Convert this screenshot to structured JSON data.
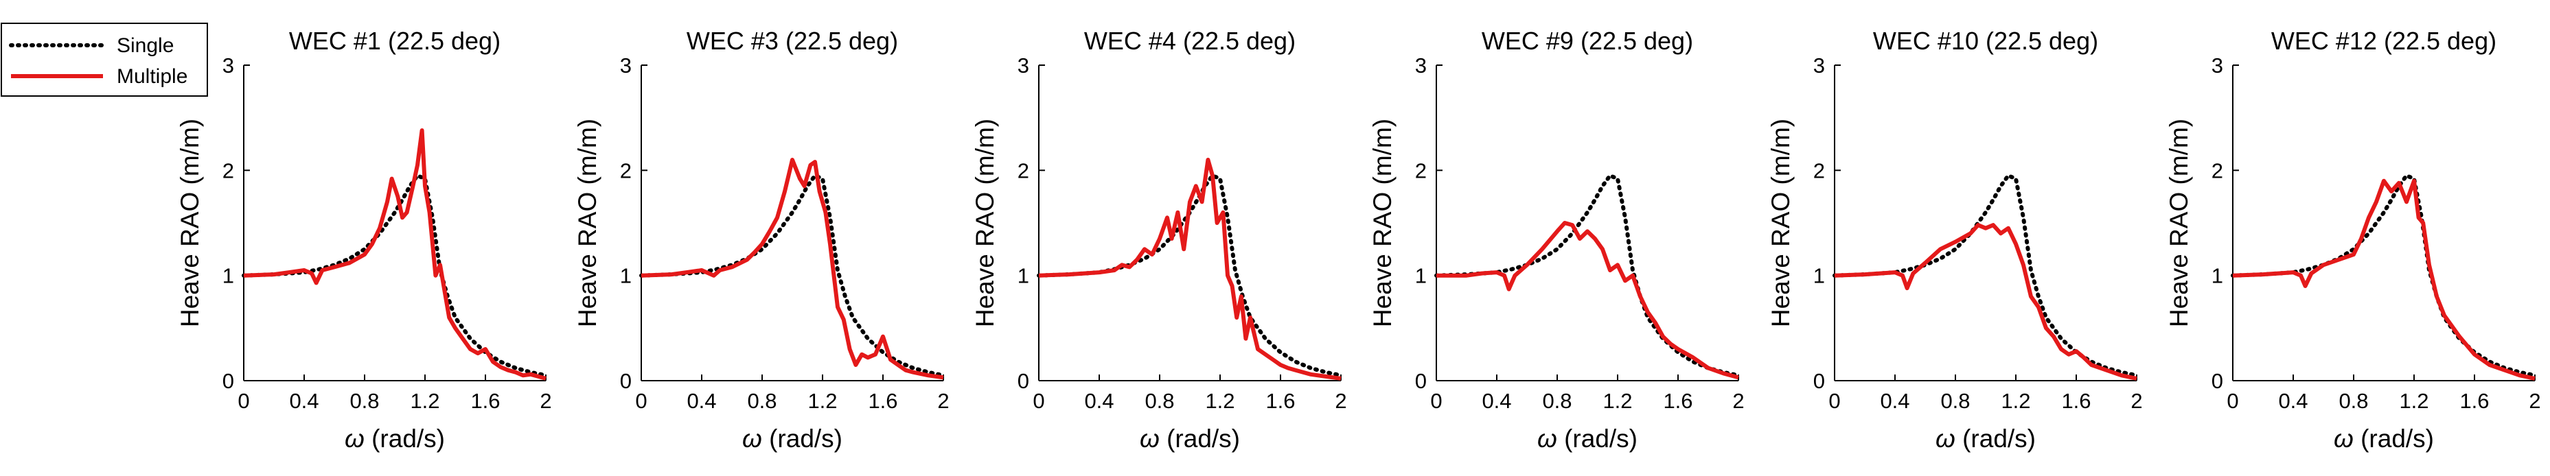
{
  "legend": {
    "entries": [
      {
        "label": "Single",
        "color": "#000000",
        "style": "dotted"
      },
      {
        "label": "Multiple",
        "color": "#e41a1a",
        "style": "solid"
      }
    ],
    "placement": "top-left"
  },
  "chart_data": [
    {
      "type": "line",
      "title": "WEC #1 (22.5 deg)",
      "xlabel": "ω (rad/s)",
      "ylabel": "Heave RAO (m/m)",
      "xlim": [
        0,
        2
      ],
      "ylim": [
        0,
        3
      ],
      "xticks": [
        "0",
        "0.4",
        "0.8",
        "1.2",
        "1.6",
        "2"
      ],
      "yticks": [
        "0",
        "1",
        "2",
        "3"
      ],
      "grid": false,
      "series": [
        {
          "name": "Single",
          "x": [
            0,
            0.2,
            0.4,
            0.5,
            0.6,
            0.7,
            0.8,
            0.9,
            1.0,
            1.05,
            1.1,
            1.15,
            1.2,
            1.25,
            1.3,
            1.35,
            1.4,
            1.5,
            1.6,
            1.7,
            1.8,
            1.9,
            2.0
          ],
          "y": [
            1.0,
            1.01,
            1.03,
            1.06,
            1.1,
            1.16,
            1.25,
            1.4,
            1.6,
            1.72,
            1.85,
            1.95,
            1.92,
            1.55,
            1.05,
            0.8,
            0.6,
            0.4,
            0.27,
            0.18,
            0.12,
            0.08,
            0.05
          ]
        },
        {
          "name": "Multiple",
          "x": [
            0,
            0.2,
            0.3,
            0.4,
            0.45,
            0.48,
            0.52,
            0.6,
            0.7,
            0.8,
            0.85,
            0.9,
            0.95,
            0.98,
            1.02,
            1.05,
            1.08,
            1.12,
            1.15,
            1.18,
            1.2,
            1.23,
            1.27,
            1.3,
            1.33,
            1.36,
            1.4,
            1.45,
            1.5,
            1.55,
            1.6,
            1.65,
            1.7,
            1.75,
            1.8,
            1.85,
            1.9,
            1.95,
            2.0
          ],
          "y": [
            1.0,
            1.01,
            1.03,
            1.05,
            1.02,
            0.93,
            1.05,
            1.08,
            1.12,
            1.2,
            1.3,
            1.45,
            1.7,
            1.92,
            1.75,
            1.55,
            1.6,
            1.85,
            2.05,
            2.38,
            1.85,
            1.6,
            1.0,
            1.1,
            0.85,
            0.6,
            0.5,
            0.4,
            0.3,
            0.26,
            0.3,
            0.18,
            0.13,
            0.1,
            0.08,
            0.05,
            0.06,
            0.04,
            0.02
          ]
        }
      ]
    },
    {
      "type": "line",
      "title": "WEC #3 (22.5 deg)",
      "xlabel": "ω (rad/s)",
      "ylabel": "Heave RAO (m/m)",
      "xlim": [
        0,
        2
      ],
      "ylim": [
        0,
        3
      ],
      "xticks": [
        "0",
        "0.4",
        "0.8",
        "1.2",
        "1.6",
        "2"
      ],
      "yticks": [
        "0",
        "1",
        "2",
        "3"
      ],
      "grid": false,
      "series": [
        {
          "name": "Single",
          "x": [
            0,
            0.2,
            0.4,
            0.5,
            0.6,
            0.7,
            0.8,
            0.9,
            1.0,
            1.05,
            1.1,
            1.15,
            1.2,
            1.25,
            1.3,
            1.35,
            1.4,
            1.5,
            1.6,
            1.7,
            1.8,
            1.9,
            2.0
          ],
          "y": [
            1.0,
            1.01,
            1.03,
            1.06,
            1.1,
            1.16,
            1.25,
            1.4,
            1.6,
            1.72,
            1.85,
            1.95,
            1.92,
            1.55,
            1.05,
            0.8,
            0.6,
            0.4,
            0.27,
            0.18,
            0.12,
            0.08,
            0.05
          ]
        },
        {
          "name": "Multiple",
          "x": [
            0,
            0.2,
            0.3,
            0.4,
            0.48,
            0.52,
            0.6,
            0.7,
            0.75,
            0.8,
            0.85,
            0.9,
            0.95,
            1.0,
            1.05,
            1.08,
            1.12,
            1.15,
            1.18,
            1.22,
            1.25,
            1.3,
            1.34,
            1.38,
            1.42,
            1.46,
            1.5,
            1.55,
            1.6,
            1.65,
            1.7,
            1.75,
            1.8,
            1.9,
            2.0
          ],
          "y": [
            1.0,
            1.01,
            1.03,
            1.05,
            1.0,
            1.05,
            1.08,
            1.15,
            1.22,
            1.3,
            1.42,
            1.55,
            1.8,
            2.1,
            1.92,
            1.85,
            2.05,
            2.08,
            1.8,
            1.6,
            1.3,
            0.7,
            0.58,
            0.3,
            0.15,
            0.25,
            0.22,
            0.25,
            0.42,
            0.2,
            0.15,
            0.1,
            0.08,
            0.05,
            0.03
          ]
        }
      ]
    },
    {
      "type": "line",
      "title": "WEC #4 (22.5 deg)",
      "xlabel": "ω (rad/s)",
      "ylabel": "Heave RAO (m/m)",
      "xlim": [
        0,
        2
      ],
      "ylim": [
        0,
        3
      ],
      "xticks": [
        "0",
        "0.4",
        "0.8",
        "1.2",
        "1.6",
        "2"
      ],
      "yticks": [
        "0",
        "1",
        "2",
        "3"
      ],
      "grid": false,
      "series": [
        {
          "name": "Single",
          "x": [
            0,
            0.2,
            0.4,
            0.5,
            0.6,
            0.7,
            0.8,
            0.9,
            1.0,
            1.05,
            1.1,
            1.15,
            1.2,
            1.25,
            1.3,
            1.35,
            1.4,
            1.5,
            1.6,
            1.7,
            1.8,
            1.9,
            2.0
          ],
          "y": [
            1.0,
            1.01,
            1.03,
            1.06,
            1.1,
            1.16,
            1.25,
            1.4,
            1.6,
            1.72,
            1.85,
            1.95,
            1.92,
            1.55,
            1.05,
            0.8,
            0.6,
            0.4,
            0.27,
            0.18,
            0.12,
            0.08,
            0.05
          ]
        },
        {
          "name": "Multiple",
          "x": [
            0,
            0.2,
            0.3,
            0.4,
            0.5,
            0.55,
            0.6,
            0.65,
            0.7,
            0.75,
            0.8,
            0.85,
            0.88,
            0.92,
            0.96,
            1.0,
            1.04,
            1.08,
            1.12,
            1.15,
            1.18,
            1.22,
            1.25,
            1.28,
            1.31,
            1.34,
            1.37,
            1.4,
            1.45,
            1.5,
            1.55,
            1.6,
            1.65,
            1.7,
            1.8,
            1.9,
            2.0
          ],
          "y": [
            1.0,
            1.01,
            1.02,
            1.03,
            1.05,
            1.1,
            1.08,
            1.15,
            1.25,
            1.2,
            1.35,
            1.55,
            1.35,
            1.6,
            1.25,
            1.7,
            1.85,
            1.7,
            2.1,
            1.95,
            1.5,
            1.6,
            1.0,
            0.9,
            0.6,
            0.8,
            0.4,
            0.6,
            0.3,
            0.25,
            0.2,
            0.15,
            0.12,
            0.1,
            0.06,
            0.04,
            0.02
          ]
        }
      ]
    },
    {
      "type": "line",
      "title": "WEC #9 (22.5 deg)",
      "xlabel": "ω (rad/s)",
      "ylabel": "Heave RAO (m/m)",
      "xlim": [
        0,
        2
      ],
      "ylim": [
        0,
        3
      ],
      "xticks": [
        "0",
        "0.4",
        "0.8",
        "1.2",
        "1.6",
        "2"
      ],
      "yticks": [
        "0",
        "1",
        "2",
        "3"
      ],
      "grid": false,
      "series": [
        {
          "name": "Single",
          "x": [
            0,
            0.2,
            0.4,
            0.5,
            0.6,
            0.7,
            0.8,
            0.9,
            1.0,
            1.05,
            1.1,
            1.15,
            1.2,
            1.25,
            1.3,
            1.35,
            1.4,
            1.5,
            1.6,
            1.7,
            1.8,
            1.9,
            2.0
          ],
          "y": [
            1.0,
            1.01,
            1.03,
            1.06,
            1.1,
            1.16,
            1.25,
            1.4,
            1.6,
            1.72,
            1.85,
            1.95,
            1.92,
            1.55,
            1.05,
            0.8,
            0.6,
            0.4,
            0.27,
            0.18,
            0.12,
            0.08,
            0.05
          ]
        },
        {
          "name": "Multiple",
          "x": [
            0,
            0.2,
            0.3,
            0.4,
            0.45,
            0.48,
            0.52,
            0.6,
            0.7,
            0.8,
            0.85,
            0.9,
            0.95,
            1.0,
            1.05,
            1.1,
            1.15,
            1.2,
            1.25,
            1.3,
            1.35,
            1.4,
            1.45,
            1.5,
            1.55,
            1.6,
            1.7,
            1.8,
            1.9,
            2.0
          ],
          "y": [
            1.0,
            1.0,
            1.02,
            1.03,
            1.0,
            0.87,
            1.0,
            1.1,
            1.25,
            1.42,
            1.5,
            1.48,
            1.35,
            1.42,
            1.35,
            1.25,
            1.05,
            1.1,
            0.95,
            1.0,
            0.8,
            0.65,
            0.55,
            0.42,
            0.35,
            0.3,
            0.22,
            0.12,
            0.07,
            0.03
          ]
        }
      ]
    },
    {
      "type": "line",
      "title": "WEC #10 (22.5 deg)",
      "xlabel": "ω (rad/s)",
      "ylabel": "Heave RAO (m/m)",
      "xlim": [
        0,
        2
      ],
      "ylim": [
        0,
        3
      ],
      "xticks": [
        "0",
        "0.4",
        "0.8",
        "1.2",
        "1.6",
        "2"
      ],
      "yticks": [
        "0",
        "1",
        "2",
        "3"
      ],
      "grid": false,
      "series": [
        {
          "name": "Single",
          "x": [
            0,
            0.2,
            0.4,
            0.5,
            0.6,
            0.7,
            0.8,
            0.9,
            1.0,
            1.05,
            1.1,
            1.15,
            1.2,
            1.25,
            1.3,
            1.35,
            1.4,
            1.5,
            1.6,
            1.7,
            1.8,
            1.9,
            2.0
          ],
          "y": [
            1.0,
            1.01,
            1.03,
            1.06,
            1.1,
            1.16,
            1.25,
            1.4,
            1.6,
            1.72,
            1.85,
            1.95,
            1.92,
            1.55,
            1.05,
            0.8,
            0.6,
            0.4,
            0.27,
            0.18,
            0.12,
            0.08,
            0.05
          ]
        },
        {
          "name": "Multiple",
          "x": [
            0,
            0.2,
            0.3,
            0.4,
            0.45,
            0.48,
            0.52,
            0.6,
            0.7,
            0.8,
            0.9,
            0.95,
            1.0,
            1.05,
            1.1,
            1.15,
            1.2,
            1.25,
            1.3,
            1.35,
            1.4,
            1.45,
            1.5,
            1.55,
            1.6,
            1.65,
            1.7,
            1.8,
            1.9,
            2.0
          ],
          "y": [
            1.0,
            1.01,
            1.02,
            1.03,
            1.0,
            0.88,
            1.02,
            1.12,
            1.25,
            1.32,
            1.4,
            1.48,
            1.45,
            1.48,
            1.4,
            1.45,
            1.3,
            1.1,
            0.8,
            0.7,
            0.5,
            0.42,
            0.3,
            0.25,
            0.28,
            0.22,
            0.15,
            0.1,
            0.05,
            0.02
          ]
        }
      ]
    },
    {
      "type": "line",
      "title": "WEC #12 (22.5 deg)",
      "xlabel": "ω (rad/s)",
      "ylabel": "Heave RAO (m/m)",
      "xlim": [
        0,
        2
      ],
      "ylim": [
        0,
        3
      ],
      "xticks": [
        "0",
        "0.4",
        "0.8",
        "1.2",
        "1.6",
        "2"
      ],
      "yticks": [
        "0",
        "1",
        "2",
        "3"
      ],
      "grid": false,
      "series": [
        {
          "name": "Single",
          "x": [
            0,
            0.2,
            0.4,
            0.5,
            0.6,
            0.7,
            0.8,
            0.9,
            1.0,
            1.05,
            1.1,
            1.15,
            1.2,
            1.25,
            1.3,
            1.35,
            1.4,
            1.5,
            1.6,
            1.7,
            1.8,
            1.9,
            2.0
          ],
          "y": [
            1.0,
            1.01,
            1.03,
            1.06,
            1.1,
            1.16,
            1.25,
            1.4,
            1.6,
            1.72,
            1.85,
            1.95,
            1.92,
            1.55,
            1.05,
            0.8,
            0.6,
            0.4,
            0.27,
            0.18,
            0.12,
            0.08,
            0.05
          ]
        },
        {
          "name": "Multiple",
          "x": [
            0,
            0.2,
            0.3,
            0.4,
            0.45,
            0.48,
            0.52,
            0.6,
            0.7,
            0.8,
            0.85,
            0.9,
            0.95,
            1.0,
            1.05,
            1.1,
            1.15,
            1.2,
            1.23,
            1.26,
            1.3,
            1.35,
            1.4,
            1.5,
            1.6,
            1.7,
            1.8,
            1.9,
            2.0
          ],
          "y": [
            1.0,
            1.01,
            1.02,
            1.03,
            1.0,
            0.9,
            1.02,
            1.1,
            1.15,
            1.2,
            1.35,
            1.55,
            1.7,
            1.9,
            1.8,
            1.88,
            1.7,
            1.9,
            1.55,
            1.5,
            1.1,
            0.8,
            0.62,
            0.42,
            0.25,
            0.15,
            0.1,
            0.05,
            0.02
          ]
        }
      ]
    }
  ]
}
